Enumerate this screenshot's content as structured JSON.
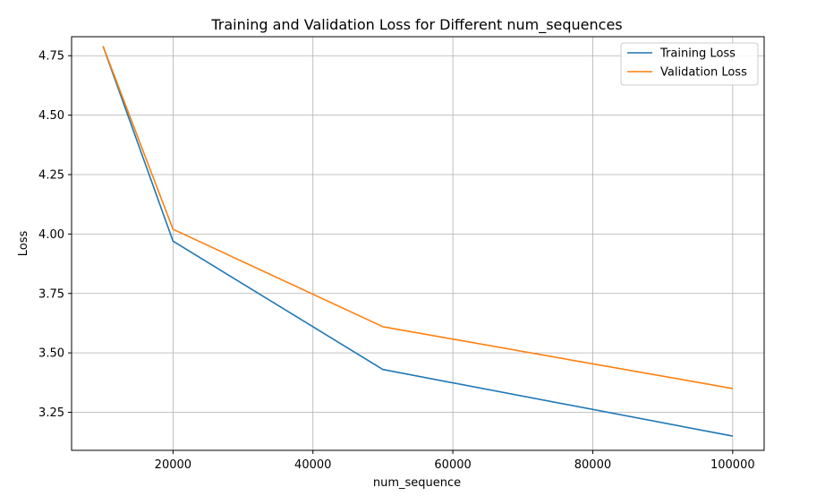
{
  "chart_data": {
    "type": "line",
    "title": "Training and Validation Loss for Different num_sequences",
    "xlabel": "num_sequence",
    "ylabel": "Loss",
    "x": [
      10000,
      20000,
      50000,
      100000
    ],
    "xlim": [
      5500,
      104500
    ],
    "ylim": [
      3.09,
      4.83
    ],
    "xticks": [
      20000,
      40000,
      60000,
      80000,
      100000
    ],
    "xtick_labels": [
      "20000",
      "40000",
      "60000",
      "80000",
      "100000"
    ],
    "yticks": [
      3.25,
      3.5,
      3.75,
      4.0,
      4.25,
      4.5,
      4.75
    ],
    "ytick_labels": [
      "3.25",
      "3.50",
      "3.75",
      "4.00",
      "4.25",
      "4.50",
      "4.75"
    ],
    "grid": true,
    "legend_position": "top-right",
    "series": [
      {
        "name": "Training Loss",
        "values": [
          4.79,
          3.97,
          3.43,
          3.15
        ],
        "color": "#1f77b4"
      },
      {
        "name": "Validation Loss",
        "values": [
          4.79,
          4.02,
          3.61,
          3.35
        ],
        "color": "#ff7f0e"
      }
    ]
  }
}
